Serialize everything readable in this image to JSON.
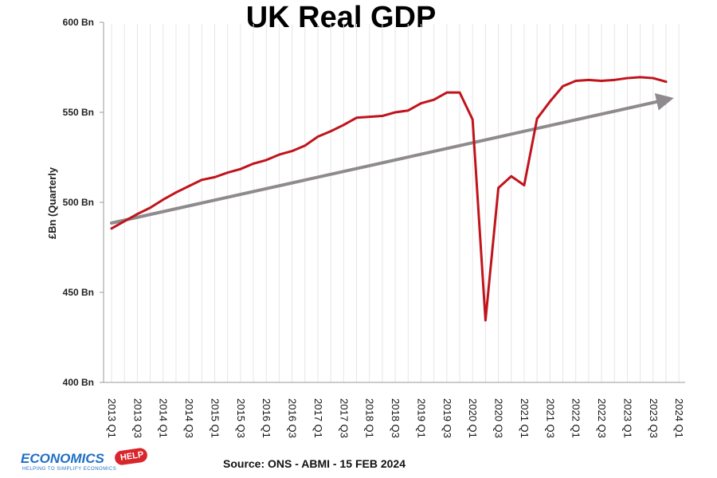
{
  "chart_data": {
    "type": "line",
    "title": "UK Real GDP",
    "ylabel": "£Bn (Quarterly",
    "ylim": [
      400,
      600
    ],
    "yticks": [
      {
        "value": 400,
        "label": "400 Bn"
      },
      {
        "value": 450,
        "label": "450 Bn"
      },
      {
        "value": 500,
        "label": "500 Bn"
      },
      {
        "value": 550,
        "label": "550 Bn"
      },
      {
        "value": 600,
        "label": "600 Bn"
      }
    ],
    "x_tick_labels": [
      "2013 Q1",
      "2013 Q3",
      "2014 Q1",
      "2014 Q3",
      "2015 Q1",
      "2015 Q3",
      "2016 Q1",
      "2016 Q3",
      "2017 Q1",
      "2017 Q3",
      "2018 Q1",
      "2018 Q3",
      "2019 Q1",
      "2019 Q3",
      "2020 Q1",
      "2020 Q3",
      "2021 Q1",
      "2021 Q3",
      "2022 Q1",
      "2022 Q3",
      "2023 Q1",
      "2023 Q3",
      "2024 Q1"
    ],
    "categories": [
      "2013 Q1",
      "2013 Q2",
      "2013 Q3",
      "2013 Q4",
      "2014 Q1",
      "2014 Q2",
      "2014 Q3",
      "2014 Q4",
      "2015 Q1",
      "2015 Q2",
      "2015 Q3",
      "2015 Q4",
      "2016 Q1",
      "2016 Q2",
      "2016 Q3",
      "2016 Q4",
      "2017 Q1",
      "2017 Q2",
      "2017 Q3",
      "2017 Q4",
      "2018 Q1",
      "2018 Q2",
      "2018 Q3",
      "2018 Q4",
      "2019 Q1",
      "2019 Q2",
      "2019 Q3",
      "2019 Q4",
      "2020 Q1",
      "2020 Q2",
      "2020 Q3",
      "2020 Q4",
      "2021 Q1",
      "2021 Q2",
      "2021 Q3",
      "2021 Q4",
      "2022 Q1",
      "2022 Q2",
      "2022 Q3",
      "2022 Q4",
      "2023 Q1",
      "2023 Q2",
      "2023 Q3",
      "2023 Q4"
    ],
    "series": [
      {
        "color": "#c0141c",
        "values": [
          485.5,
          489.5,
          493.5,
          497,
          501.5,
          505.5,
          509,
          512.5,
          514,
          516.5,
          518.5,
          521.5,
          523.5,
          526.5,
          528.5,
          531.5,
          536.5,
          539.5,
          543,
          547,
          547.5,
          548,
          550,
          551,
          555,
          557,
          561,
          561,
          546,
          434.5,
          508,
          514.5,
          509.5,
          546.5,
          556,
          564.5,
          567.5,
          568,
          567.5,
          568,
          569,
          569.5,
          569,
          567
        ]
      }
    ],
    "trend": {
      "color": "#8e8a8d",
      "start": {
        "x": "2013 Q1",
        "y": 488.5
      },
      "end": {
        "x": "2023 Q4",
        "y": 557
      }
    },
    "grid": true,
    "source": "Source: ONS - ABMI - 15 FEB 2024"
  },
  "logo": {
    "word": "ECONOMICS",
    "badge": "HELP",
    "tagline": "HELPING TO SIMPLIFY ECONOMICS"
  }
}
